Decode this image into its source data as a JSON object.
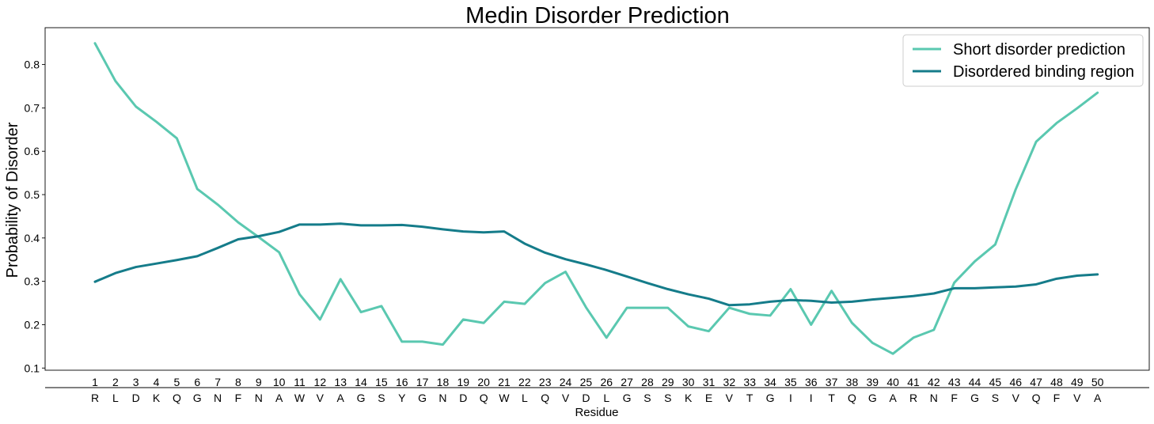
{
  "chart_data": {
    "type": "line",
    "title": "Medin Disorder Prediction",
    "xlabel": "Residue",
    "ylabel": "Probability of Disorder",
    "ylim": [
      0.095,
      0.885
    ],
    "yticks": [
      "0.1",
      "0.2",
      "0.3",
      "0.4",
      "0.5",
      "0.6",
      "0.7",
      "0.8"
    ],
    "x": [
      "1",
      "2",
      "3",
      "4",
      "5",
      "6",
      "7",
      "8",
      "9",
      "10",
      "11",
      "12",
      "13",
      "14",
      "15",
      "16",
      "17",
      "18",
      "19",
      "20",
      "21",
      "22",
      "23",
      "24",
      "25",
      "26",
      "27",
      "28",
      "29",
      "30",
      "31",
      "32",
      "33",
      "34",
      "35",
      "36",
      "37",
      "38",
      "39",
      "40",
      "41",
      "42",
      "43",
      "44",
      "45",
      "46",
      "47",
      "48",
      "49",
      "50"
    ],
    "residues": [
      "R",
      "L",
      "D",
      "K",
      "Q",
      "G",
      "N",
      "F",
      "N",
      "A",
      "W",
      "V",
      "A",
      "G",
      "S",
      "Y",
      "G",
      "N",
      "D",
      "Q",
      "W",
      "L",
      "Q",
      "V",
      "D",
      "L",
      "G",
      "S",
      "S",
      "K",
      "E",
      "V",
      "T",
      "G",
      "I",
      "I",
      "T",
      "Q",
      "G",
      "A",
      "R",
      "N",
      "F",
      "G",
      "S",
      "V",
      "Q",
      "F",
      "V",
      "A"
    ],
    "grid": false,
    "legend_position": "top-right",
    "series": [
      {
        "name": "Short disorder prediction",
        "color": "#5ac8b0",
        "values": [
          0.849,
          0.762,
          0.703,
          0.668,
          0.63,
          0.513,
          0.477,
          0.436,
          0.402,
          0.367,
          0.27,
          0.212,
          0.305,
          0.229,
          0.243,
          0.161,
          0.161,
          0.154,
          0.212,
          0.204,
          0.253,
          0.248,
          0.296,
          0.322,
          0.24,
          0.17,
          0.239,
          0.239,
          0.239,
          0.196,
          0.185,
          0.239,
          0.225,
          0.221,
          0.282,
          0.2,
          0.278,
          0.204,
          0.158,
          0.133,
          0.17,
          0.188,
          0.297,
          0.346,
          0.385,
          0.512,
          0.622,
          0.665,
          0.699,
          0.735
        ]
      },
      {
        "name": "Disordered binding region",
        "color": "#157c8a",
        "values": [
          0.299,
          0.319,
          0.333,
          0.341,
          0.349,
          0.358,
          0.377,
          0.397,
          0.404,
          0.414,
          0.431,
          0.431,
          0.433,
          0.429,
          0.429,
          0.43,
          0.426,
          0.42,
          0.415,
          0.413,
          0.415,
          0.387,
          0.366,
          0.351,
          0.339,
          0.326,
          0.311,
          0.296,
          0.282,
          0.27,
          0.26,
          0.245,
          0.247,
          0.253,
          0.257,
          0.255,
          0.251,
          0.253,
          0.258,
          0.262,
          0.266,
          0.272,
          0.284,
          0.284,
          0.286,
          0.288,
          0.293,
          0.306,
          0.313,
          0.316
        ]
      }
    ]
  }
}
